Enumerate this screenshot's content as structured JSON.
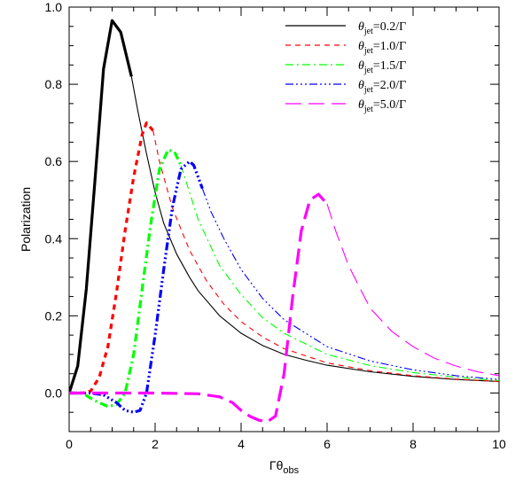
{
  "chart_data": {
    "type": "line",
    "xlabel": "Γθ",
    "xlabel_sub": "obs",
    "ylabel": "Polarization",
    "xlim": [
      0,
      10
    ],
    "ylim": [
      -0.1,
      1.0
    ],
    "x_ticks": [
      0,
      2,
      4,
      6,
      8,
      10
    ],
    "x_tick_labels": [
      "0",
      "2",
      "4",
      "6",
      "8",
      "10"
    ],
    "y_ticks": [
      0.0,
      0.2,
      0.4,
      0.6,
      0.8,
      1.0
    ],
    "y_tick_labels": [
      "0.0",
      "0.2",
      "0.4",
      "0.6",
      "0.8",
      "1.0"
    ],
    "grid": false,
    "legend_position": "top-right",
    "series": [
      {
        "label_prefix": "θ",
        "label_sub": "jet",
        "label_suffix": "=0.2/Γ",
        "color": "#000000",
        "dash": "",
        "thick_until": 1.45,
        "x": [
          0,
          0.2,
          0.4,
          0.6,
          0.8,
          1.0,
          1.2,
          1.45,
          1.6,
          1.8,
          2.0,
          2.2,
          2.5,
          2.8,
          3.0,
          3.5,
          4.0,
          4.5,
          5.0,
          5.5,
          6.0,
          7.0,
          8.0,
          9.0,
          10.0
        ],
        "y": [
          0,
          0.07,
          0.27,
          0.55,
          0.84,
          0.965,
          0.935,
          0.82,
          0.73,
          0.62,
          0.52,
          0.44,
          0.36,
          0.3,
          0.265,
          0.2,
          0.155,
          0.123,
          0.1,
          0.085,
          0.072,
          0.055,
          0.043,
          0.035,
          0.03
        ]
      },
      {
        "label_prefix": "θ",
        "label_sub": "jet",
        "label_suffix": "=1.0/Γ",
        "color": "#ff0000",
        "dash": "6,5",
        "thick_until": 2.0,
        "x": [
          0,
          0.3,
          0.5,
          0.7,
          0.9,
          1.1,
          1.3,
          1.5,
          1.7,
          1.8,
          1.95,
          2.1,
          2.4,
          2.8,
          3.2,
          3.6,
          4.0,
          4.5,
          5.0,
          6.0,
          7.0,
          8.0,
          9.0,
          10.0
        ],
        "y": [
          0,
          0.0,
          0.005,
          0.04,
          0.12,
          0.26,
          0.42,
          0.56,
          0.67,
          0.7,
          0.68,
          0.6,
          0.48,
          0.37,
          0.29,
          0.23,
          0.185,
          0.145,
          0.115,
          0.078,
          0.058,
          0.045,
          0.036,
          0.03
        ]
      },
      {
        "label_prefix": "θ",
        "label_sub": "jet",
        "label_suffix": "=1.5/Γ",
        "color": "#00ff00",
        "dash": "9,4,2,4",
        "thick_until": 2.6,
        "x": [
          0,
          0.3,
          0.6,
          0.9,
          1.1,
          1.3,
          1.5,
          1.7,
          1.9,
          2.1,
          2.3,
          2.45,
          2.6,
          2.8,
          3.0,
          3.5,
          4.0,
          4.5,
          5.0,
          6.0,
          7.0,
          8.0,
          9.0,
          10.0
        ],
        "y": [
          0,
          0.0,
          -0.02,
          -0.035,
          -0.03,
          0.0,
          0.1,
          0.27,
          0.44,
          0.58,
          0.63,
          0.625,
          0.59,
          0.52,
          0.45,
          0.33,
          0.255,
          0.195,
          0.155,
          0.1,
          0.071,
          0.053,
          0.041,
          0.032
        ]
      },
      {
        "label_prefix": "θ",
        "label_sub": "jet",
        "label_suffix": "=2.0/Γ",
        "color": "#0000ff",
        "dash": "9,3,2,3,2,3,2,3",
        "thick_until": 3.1,
        "x": [
          0,
          0.5,
          0.8,
          1.1,
          1.3,
          1.5,
          1.65,
          1.8,
          2.0,
          2.2,
          2.4,
          2.6,
          2.8,
          2.9,
          3.1,
          3.3,
          3.6,
          4.0,
          4.5,
          5.0,
          6.0,
          7.0,
          8.0,
          9.0,
          10.0
        ],
        "y": [
          0,
          0.0,
          -0.005,
          -0.025,
          -0.045,
          -0.05,
          -0.045,
          0.0,
          0.15,
          0.32,
          0.48,
          0.58,
          0.6,
          0.59,
          0.53,
          0.47,
          0.4,
          0.32,
          0.245,
          0.19,
          0.12,
          0.083,
          0.06,
          0.045,
          0.035
        ]
      },
      {
        "label_prefix": "θ",
        "label_sub": "jet",
        "label_suffix": "=5.0/Γ",
        "color": "#ff00ff",
        "dash": "18,8",
        "thick_until": 6.0,
        "x": [
          0,
          1.0,
          2.0,
          3.0,
          3.5,
          3.8,
          4.0,
          4.2,
          4.4,
          4.6,
          4.8,
          5.0,
          5.2,
          5.4,
          5.6,
          5.8,
          6.0,
          6.2,
          6.5,
          7.0,
          7.5,
          8.0,
          8.5,
          9.0,
          9.5,
          10.0
        ],
        "y": [
          0,
          0.0,
          0.0,
          -0.002,
          -0.01,
          -0.025,
          -0.045,
          -0.06,
          -0.07,
          -0.075,
          -0.06,
          0.05,
          0.25,
          0.42,
          0.5,
          0.515,
          0.49,
          0.42,
          0.33,
          0.22,
          0.16,
          0.12,
          0.09,
          0.07,
          0.055,
          0.045
        ]
      }
    ]
  }
}
